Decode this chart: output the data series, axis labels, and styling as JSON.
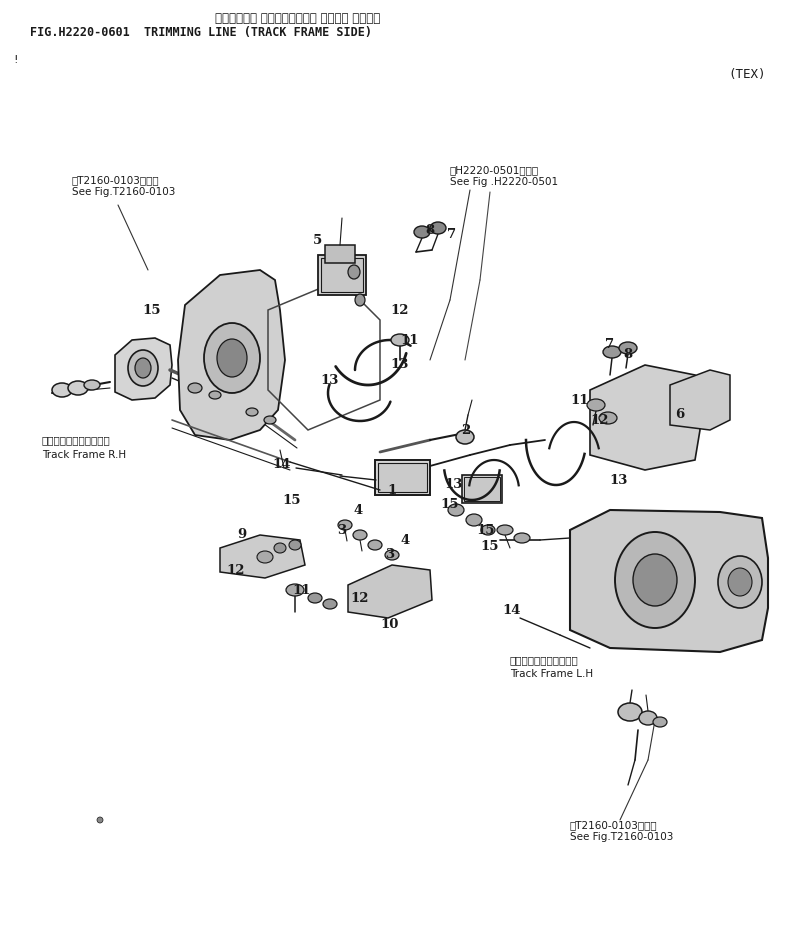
{
  "title_japanese": "トリミング・ ライン（トラック フレーム サイド）",
  "title_english": "FIG.H2220-0601  TRIMMING LINE (TRACK FRAME SIDE)",
  "tex_label": "(TEX)",
  "bg_color": "#ffffff",
  "text_color": "#1a1a1a",
  "ref_left": "第T2160-0103図参照\nSee Fig.T2160-0103",
  "ref_top_right": "第H2220-0501図参照\nSee Fig .H2220-0501",
  "label_rh_jp": "トラックフレーム　右側",
  "label_rh_en": "Track Frame R.H",
  "label_lh_jp": "トラックフレーム　左側",
  "label_lh_en": "Track Frame L.H",
  "ref_right": "第T2160-0103図参照\nSee Fig.T2160-0103",
  "lc": "#1a1a1a",
  "gray1": "#c8c8c8",
  "gray2": "#b0b0b0",
  "gray3": "#909090"
}
